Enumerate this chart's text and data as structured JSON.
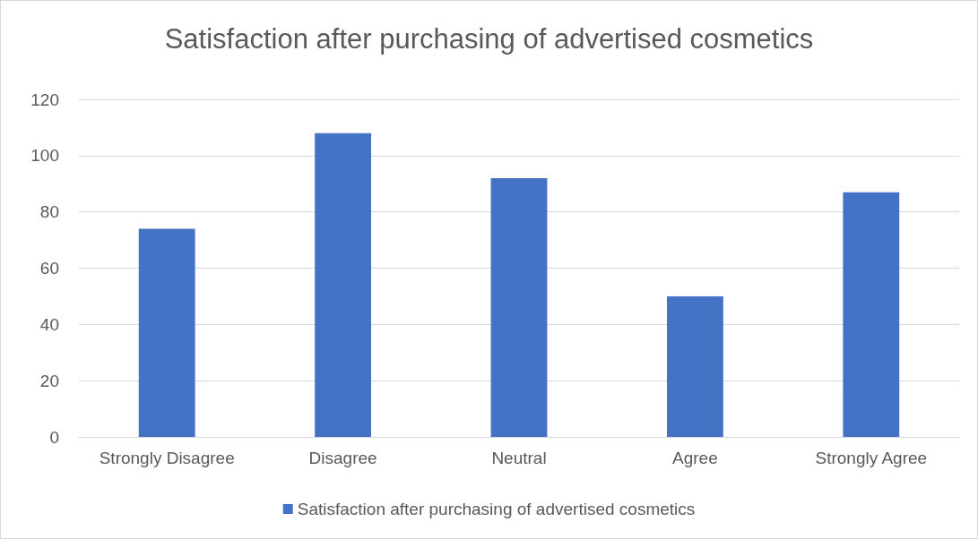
{
  "chart_data": {
    "type": "bar",
    "title": "Satisfaction after purchasing of advertised cosmetics",
    "categories": [
      "Strongly Disagree",
      "Disagree",
      "Neutral",
      "Agree",
      "Strongly Agree"
    ],
    "series": [
      {
        "name": "Satisfaction after purchasing of advertised cosmetics",
        "color": "#4472c4",
        "values": [
          74,
          108,
          92,
          50,
          87
        ]
      }
    ],
    "ylim": [
      0,
      120
    ],
    "yticks": [
      0,
      20,
      40,
      60,
      80,
      100,
      120
    ],
    "grid": "y",
    "legend": "bottom"
  }
}
